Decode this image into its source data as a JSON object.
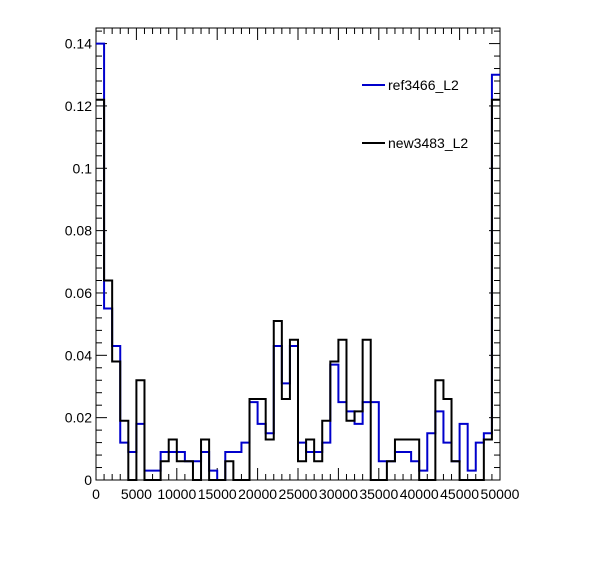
{
  "chart_data": {
    "type": "histogram",
    "title": "",
    "xlabel": "",
    "ylabel": "",
    "xlim": [
      0,
      50000
    ],
    "ylim": [
      0,
      0.145
    ],
    "bin_width": 1000,
    "x_ticks": [
      0,
      5000,
      10000,
      15000,
      20000,
      25000,
      30000,
      35000,
      40000,
      45000,
      50000
    ],
    "x_tick_labels": [
      "0",
      "5000",
      "10000",
      "15000",
      "20000",
      "25000",
      "30000",
      "35000",
      "40000",
      "45000",
      "50000"
    ],
    "y_ticks": [
      0,
      0.02,
      0.04,
      0.06,
      0.08,
      0.1,
      0.12,
      0.14
    ],
    "y_tick_labels": [
      "0",
      "0.02",
      "0.04",
      "0.06",
      "0.08",
      "0.1",
      "0.12",
      "0.14"
    ],
    "legend": {
      "placement": "top-right"
    },
    "series": [
      {
        "name": "ref3466_L2",
        "color": "#0000cc",
        "values": [
          0.14,
          0.055,
          0.043,
          0.012,
          0.009,
          0.018,
          0.003,
          0.003,
          0.009,
          0.009,
          0.009,
          0.006,
          0.006,
          0.009,
          0.003,
          0.0,
          0.009,
          0.009,
          0.012,
          0.025,
          0.018,
          0.015,
          0.043,
          0.031,
          0.043,
          0.012,
          0.009,
          0.009,
          0.012,
          0.037,
          0.025,
          0.022,
          0.018,
          0.025,
          0.025,
          0.006,
          0.006,
          0.009,
          0.009,
          0.006,
          0.003,
          0.015,
          0.022,
          0.012,
          0.006,
          0.018,
          0.003,
          0.012,
          0.015,
          0.13
        ]
      },
      {
        "name": "new3483_L2",
        "color": "#000000",
        "values": [
          0.122,
          0.064,
          0.038,
          0.019,
          0.0,
          0.032,
          0.0,
          0.0,
          0.006,
          0.013,
          0.006,
          0.006,
          0.0,
          0.013,
          0.0,
          0.0,
          0.006,
          0.0,
          0.0,
          0.026,
          0.026,
          0.013,
          0.051,
          0.026,
          0.045,
          0.006,
          0.013,
          0.006,
          0.019,
          0.038,
          0.045,
          0.019,
          0.022,
          0.045,
          0.0,
          0.0,
          0.006,
          0.013,
          0.013,
          0.013,
          0.0,
          0.0,
          0.032,
          0.026,
          0.006,
          0.0,
          0.0,
          0.0,
          0.013,
          0.122
        ]
      }
    ]
  }
}
